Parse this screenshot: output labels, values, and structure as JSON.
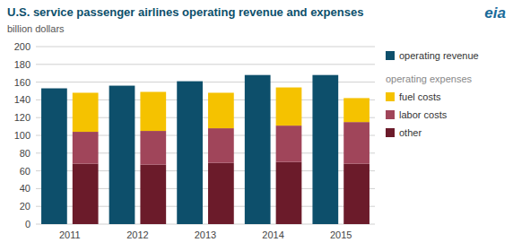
{
  "chart_data": {
    "type": "bar",
    "title": "U.S. service passenger airlines operating revenue and expenses",
    "subtitle": "billion dollars",
    "annotations": [
      "operating expenses",
      "eia"
    ],
    "categories": [
      "2011",
      "2012",
      "2013",
      "2014",
      "2015"
    ],
    "series": [
      {
        "name": "operating revenue",
        "color": "#0d4f6b",
        "values": [
          153,
          156,
          161,
          168,
          168
        ]
      },
      {
        "name": "other",
        "color": "#6b1b2a",
        "stacked": true,
        "values": [
          68,
          67,
          69,
          70,
          68
        ]
      },
      {
        "name": "labor costs",
        "color": "#a0455a",
        "stacked": true,
        "values": [
          36,
          38,
          39,
          41,
          47
        ]
      },
      {
        "name": "fuel costs",
        "color": "#f5c200",
        "stacked": true,
        "values": [
          44,
          44,
          40,
          43,
          27
        ]
      }
    ],
    "ylim": [
      0,
      200
    ],
    "yticks": [
      0,
      20,
      40,
      60,
      80,
      100,
      120,
      140,
      160,
      180,
      200
    ],
    "grid": true
  }
}
